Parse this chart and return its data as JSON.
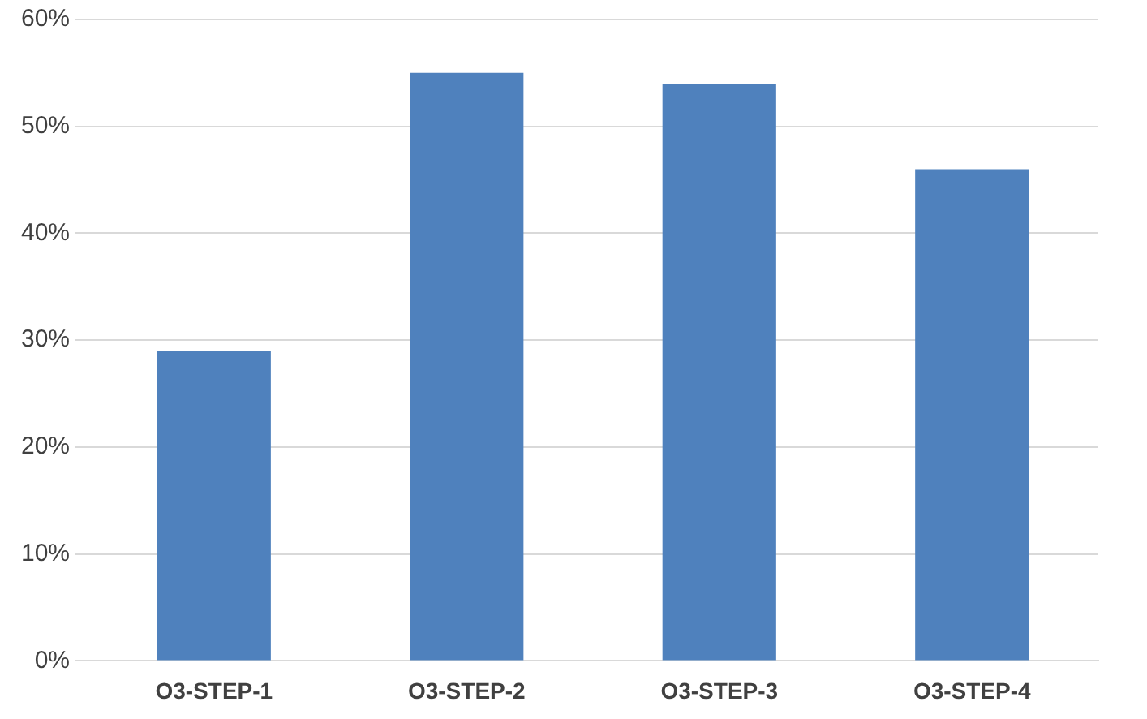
{
  "chart_data": {
    "type": "bar",
    "categories": [
      "O3-STEP-1",
      "O3-STEP-2",
      "O3-STEP-3",
      "O3-STEP-4"
    ],
    "values": [
      29,
      55,
      54,
      46
    ],
    "color": "#4f81bd",
    "ylim": [
      0,
      60
    ],
    "yticks": [
      {
        "value": 0,
        "label": "0%"
      },
      {
        "value": 10,
        "label": "10%"
      },
      {
        "value": 20,
        "label": "20%"
      },
      {
        "value": 30,
        "label": "30%"
      },
      {
        "value": 40,
        "label": "40%"
      },
      {
        "value": 50,
        "label": "50%"
      },
      {
        "value": 60,
        "label": "60%"
      }
    ],
    "grid": "y"
  }
}
